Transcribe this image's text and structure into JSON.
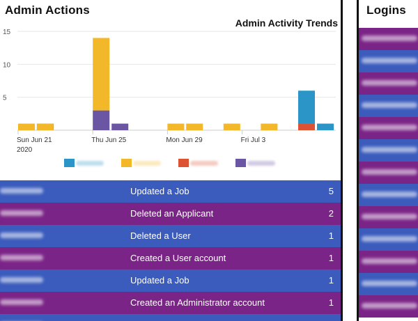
{
  "admin_actions": {
    "title": "Admin Actions",
    "colors": {
      "blue_row": "#3b5cbd",
      "purple_row": "#7b2487"
    },
    "rows": [
      {
        "label": "Updated a Job",
        "count": "5",
        "color": "blue"
      },
      {
        "label": "Deleted an Applicant",
        "count": "2",
        "color": "purple"
      },
      {
        "label": "Deleted a User",
        "count": "1",
        "color": "blue"
      },
      {
        "label": "Created a User account",
        "count": "1",
        "color": "purple"
      },
      {
        "label": "Updated a Job",
        "count": "1",
        "color": "blue"
      },
      {
        "label": "Created an Administrator account",
        "count": "1",
        "color": "purple"
      },
      {
        "label": "",
        "count": "",
        "color": "blue"
      }
    ]
  },
  "logins": {
    "title": "Logins",
    "row_colors": [
      "purple",
      "blue",
      "purple",
      "blue",
      "purple",
      "blue",
      "purple",
      "blue",
      "purple",
      "blue",
      "purple",
      "blue",
      "purple"
    ]
  },
  "chart_data": {
    "type": "bar",
    "title": "Admin Activity Trends",
    "ylim": [
      0,
      15
    ],
    "yticks": [
      5,
      10,
      15
    ],
    "grid": true,
    "xticks": [
      {
        "label": "Sun Jun 21",
        "sublabel": "2020",
        "day": 0
      },
      {
        "label": "Thu Jun 25",
        "day": 4
      },
      {
        "label": "Mon Jun 29",
        "day": 8
      },
      {
        "label": "Fri Jul 3",
        "day": 12
      }
    ],
    "series_colors": {
      "blue": "#2b95c8",
      "yellow": "#f3b829",
      "red": "#de5234",
      "purple": "#6b56a3"
    },
    "bars": [
      {
        "day": 0,
        "slot": 0,
        "stack": [
          {
            "series": "yellow",
            "value": 1
          }
        ]
      },
      {
        "day": 0,
        "slot": 1,
        "stack": [
          {
            "series": "purple",
            "value": 1
          }
        ]
      },
      {
        "day": 1,
        "slot": 0,
        "stack": [
          {
            "series": "yellow",
            "value": 1
          }
        ]
      },
      {
        "day": 4,
        "slot": 0,
        "stack": [
          {
            "series": "purple",
            "value": 3
          },
          {
            "series": "yellow",
            "value": 11
          }
        ]
      },
      {
        "day": 4,
        "slot": 1,
        "stack": [
          {
            "series": "purple",
            "value": 1
          }
        ]
      },
      {
        "day": 8,
        "slot": 0,
        "stack": [
          {
            "series": "yellow",
            "value": 1
          }
        ]
      },
      {
        "day": 9,
        "slot": 0,
        "stack": [
          {
            "series": "yellow",
            "value": 1
          }
        ]
      },
      {
        "day": 11,
        "slot": 0,
        "stack": [
          {
            "series": "yellow",
            "value": 1
          }
        ]
      },
      {
        "day": 13,
        "slot": 0,
        "stack": [
          {
            "series": "yellow",
            "value": 1
          }
        ]
      },
      {
        "day": 15,
        "slot": 0,
        "stack": [
          {
            "series": "red",
            "value": 1
          },
          {
            "series": "blue",
            "value": 5
          }
        ]
      },
      {
        "day": 15,
        "slot": 1,
        "stack": [
          {
            "series": "blue",
            "value": 1
          }
        ]
      }
    ],
    "legend": [
      {
        "series": "blue",
        "color": "#2b95c8"
      },
      {
        "series": "yellow",
        "color": "#f3b829"
      },
      {
        "series": "red",
        "color": "#de5234"
      },
      {
        "series": "purple",
        "color": "#6b56a3"
      }
    ]
  }
}
